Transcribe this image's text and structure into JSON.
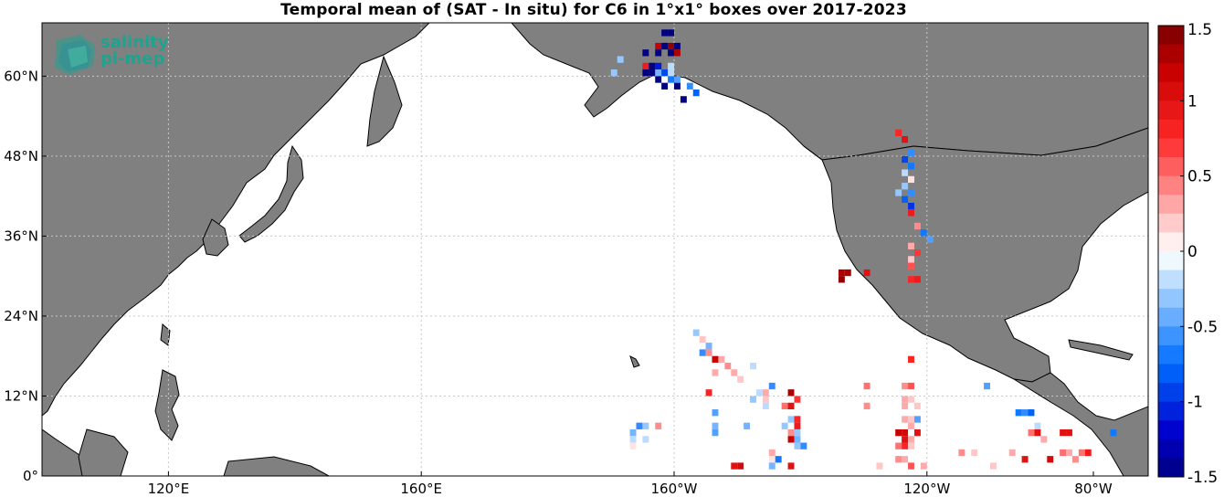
{
  "title": "Temporal mean of (SAT - In situ) for C6 in 1°x1° boxes over 2017-2023",
  "logo": {
    "line1": "salinity",
    "line2": "pi-mep"
  },
  "colors": {
    "land": "#808080",
    "ocean": "#ffffff",
    "grid": "#c8c8c8",
    "coast": "#000000"
  },
  "axes": {
    "lon_range": [
      100,
      275
    ],
    "lat_range": [
      0,
      68
    ],
    "lat_ticks": [
      {
        "value": 0,
        "label": "0°"
      },
      {
        "value": 12,
        "label": "12°N"
      },
      {
        "value": 24,
        "label": "24°N"
      },
      {
        "value": 36,
        "label": "36°N"
      },
      {
        "value": 48,
        "label": "48°N"
      },
      {
        "value": 60,
        "label": "60°N"
      }
    ],
    "lon_ticks": [
      {
        "value": 120,
        "label": "120°E"
      },
      {
        "value": 160,
        "label": "160°E"
      },
      {
        "value": 200,
        "label": "160°W"
      },
      {
        "value": 240,
        "label": "120°W"
      },
      {
        "value": 280,
        "label": "80°W"
      }
    ]
  },
  "colorbar": {
    "range": [
      -1.5,
      1.5
    ],
    "ticks": [
      {
        "value": 1.5,
        "label": "1.5"
      },
      {
        "value": 1,
        "label": "1"
      },
      {
        "value": 0.5,
        "label": "0.5"
      },
      {
        "value": 0,
        "label": "0"
      },
      {
        "value": -0.5,
        "label": "-0.5"
      },
      {
        "value": -1,
        "label": "-1"
      },
      {
        "value": -1.5,
        "label": "-1.5"
      }
    ]
  },
  "chart_data": {
    "type": "heatmap",
    "title": "Temporal mean of (SAT - In situ) for C6 in 1°x1° boxes over 2017-2023",
    "xlabel": "",
    "ylabel": "",
    "grid": true,
    "cells": [
      {
        "lon": 198,
        "lat": 66,
        "v": -1.5
      },
      {
        "lon": 199,
        "lat": 66,
        "v": -1.5
      },
      {
        "lon": 197,
        "lat": 64,
        "v": 1.2
      },
      {
        "lon": 198,
        "lat": 64,
        "v": -1.5
      },
      {
        "lon": 199,
        "lat": 64,
        "v": 1.4
      },
      {
        "lon": 200,
        "lat": 64,
        "v": -1.5
      },
      {
        "lon": 195,
        "lat": 63,
        "v": -1.5
      },
      {
        "lon": 197,
        "lat": 63,
        "v": -1.5
      },
      {
        "lon": 199,
        "lat": 63,
        "v": -1.5
      },
      {
        "lon": 200,
        "lat": 63,
        "v": 1.3
      },
      {
        "lon": 191,
        "lat": 62,
        "v": -0.3
      },
      {
        "lon": 195,
        "lat": 61,
        "v": 0.9
      },
      {
        "lon": 196,
        "lat": 61,
        "v": -1.5
      },
      {
        "lon": 197,
        "lat": 61,
        "v": -1.1
      },
      {
        "lon": 199,
        "lat": 61,
        "v": -0.2
      },
      {
        "lon": 190,
        "lat": 60,
        "v": -0.3
      },
      {
        "lon": 195,
        "lat": 60,
        "v": -1.5
      },
      {
        "lon": 196,
        "lat": 60,
        "v": -1.5
      },
      {
        "lon": 197,
        "lat": 60,
        "v": -0.4
      },
      {
        "lon": 198,
        "lat": 60,
        "v": -0.9
      },
      {
        "lon": 199,
        "lat": 60,
        "v": -0.2
      },
      {
        "lon": 197,
        "lat": 59,
        "v": -1.5
      },
      {
        "lon": 199,
        "lat": 59,
        "v": -0.7
      },
      {
        "lon": 200,
        "lat": 59,
        "v": -0.5
      },
      {
        "lon": 198,
        "lat": 58,
        "v": -1.5
      },
      {
        "lon": 200,
        "lat": 58,
        "v": -1.5
      },
      {
        "lon": 202,
        "lat": 58,
        "v": -0.6
      },
      {
        "lon": 203,
        "lat": 57,
        "v": -0.8
      },
      {
        "lon": 201,
        "lat": 56,
        "v": -1.5
      },
      {
        "lon": 235,
        "lat": 51,
        "v": 0.8
      },
      {
        "lon": 236,
        "lat": 50,
        "v": 1.0
      },
      {
        "lon": 237,
        "lat": 48,
        "v": -0.6
      },
      {
        "lon": 236,
        "lat": 47,
        "v": -0.9
      },
      {
        "lon": 237,
        "lat": 46,
        "v": -0.7
      },
      {
        "lon": 236,
        "lat": 45,
        "v": -0.2
      },
      {
        "lon": 237,
        "lat": 44,
        "v": 0.1
      },
      {
        "lon": 236,
        "lat": 43,
        "v": -0.3
      },
      {
        "lon": 235,
        "lat": 42,
        "v": -0.3
      },
      {
        "lon": 237,
        "lat": 42,
        "v": -0.6
      },
      {
        "lon": 236,
        "lat": 41,
        "v": -0.8
      },
      {
        "lon": 237,
        "lat": 40,
        "v": -1.0
      },
      {
        "lon": 237,
        "lat": 39,
        "v": 0.9
      },
      {
        "lon": 238,
        "lat": 37,
        "v": 0.4
      },
      {
        "lon": 239,
        "lat": 36,
        "v": -0.7
      },
      {
        "lon": 240,
        "lat": 35,
        "v": -0.5
      },
      {
        "lon": 237,
        "lat": 34,
        "v": 0.3
      },
      {
        "lon": 238,
        "lat": 33,
        "v": 0.7
      },
      {
        "lon": 237,
        "lat": 32,
        "v": 0.2
      },
      {
        "lon": 237,
        "lat": 31,
        "v": 0.6
      },
      {
        "lon": 226,
        "lat": 30,
        "v": 1.3
      },
      {
        "lon": 227,
        "lat": 30,
        "v": 1.3
      },
      {
        "lon": 230,
        "lat": 30,
        "v": 1.0
      },
      {
        "lon": 226,
        "lat": 29,
        "v": 1.4
      },
      {
        "lon": 237,
        "lat": 29,
        "v": 0.8
      },
      {
        "lon": 238,
        "lat": 29,
        "v": 0.9
      },
      {
        "lon": 203,
        "lat": 21,
        "v": -0.3
      },
      {
        "lon": 204,
        "lat": 20,
        "v": 0.2
      },
      {
        "lon": 205,
        "lat": 19,
        "v": -0.4
      },
      {
        "lon": 204,
        "lat": 18,
        "v": -0.6
      },
      {
        "lon": 205,
        "lat": 18,
        "v": 0.4
      },
      {
        "lon": 206,
        "lat": 17,
        "v": 1.2
      },
      {
        "lon": 207,
        "lat": 17,
        "v": 0.3
      },
      {
        "lon": 208,
        "lat": 16,
        "v": 0.4
      },
      {
        "lon": 212,
        "lat": 16,
        "v": -0.2
      },
      {
        "lon": 206,
        "lat": 15,
        "v": 0.3
      },
      {
        "lon": 209,
        "lat": 15,
        "v": 0.3
      },
      {
        "lon": 237,
        "lat": 17,
        "v": 0.8
      },
      {
        "lon": 210,
        "lat": 14,
        "v": 0.2
      },
      {
        "lon": 215,
        "lat": 13,
        "v": -0.6
      },
      {
        "lon": 218,
        "lat": 12,
        "v": 1.3
      },
      {
        "lon": 230,
        "lat": 13,
        "v": 0.5
      },
      {
        "lon": 236,
        "lat": 13,
        "v": 0.4
      },
      {
        "lon": 237,
        "lat": 13,
        "v": 0.6
      },
      {
        "lon": 249,
        "lat": 13,
        "v": -0.5
      },
      {
        "lon": 205,
        "lat": 12,
        "v": 0.8
      },
      {
        "lon": 213,
        "lat": 12,
        "v": -0.2
      },
      {
        "lon": 214,
        "lat": 12,
        "v": 0.3
      },
      {
        "lon": 212,
        "lat": 11,
        "v": -0.3
      },
      {
        "lon": 214,
        "lat": 11,
        "v": 0.2
      },
      {
        "lon": 219,
        "lat": 11,
        "v": 0.7
      },
      {
        "lon": 236,
        "lat": 11,
        "v": 0.3
      },
      {
        "lon": 237,
        "lat": 11,
        "v": 0.2
      },
      {
        "lon": 214,
        "lat": 10,
        "v": -0.2
      },
      {
        "lon": 206,
        "lat": 9,
        "v": -0.5
      },
      {
        "lon": 217,
        "lat": 10,
        "v": 0.5
      },
      {
        "lon": 218,
        "lat": 10,
        "v": 1.0
      },
      {
        "lon": 230,
        "lat": 10,
        "v": 0.4
      },
      {
        "lon": 236,
        "lat": 10,
        "v": 0.3
      },
      {
        "lon": 238,
        "lat": 10,
        "v": 0.2
      },
      {
        "lon": 254,
        "lat": 9,
        "v": -0.7
      },
      {
        "lon": 255,
        "lat": 9,
        "v": -0.6
      },
      {
        "lon": 256,
        "lat": 9,
        "v": -0.8
      },
      {
        "lon": 218,
        "lat": 8,
        "v": -0.3
      },
      {
        "lon": 219,
        "lat": 8,
        "v": 0.8
      },
      {
        "lon": 236,
        "lat": 8,
        "v": 0.3
      },
      {
        "lon": 237,
        "lat": 8,
        "v": 0.2
      },
      {
        "lon": 238,
        "lat": 8,
        "v": -0.5
      },
      {
        "lon": 206,
        "lat": 7,
        "v": -0.4
      },
      {
        "lon": 211,
        "lat": 7,
        "v": -0.4
      },
      {
        "lon": 217,
        "lat": 7,
        "v": -0.3
      },
      {
        "lon": 219,
        "lat": 7,
        "v": 0.9
      },
      {
        "lon": 237,
        "lat": 7,
        "v": 0.3
      },
      {
        "lon": 257,
        "lat": 7,
        "v": -0.2
      },
      {
        "lon": 194,
        "lat": 7,
        "v": -0.6
      },
      {
        "lon": 195,
        "lat": 7,
        "v": -0.3
      },
      {
        "lon": 197,
        "lat": 7,
        "v": 0.4
      },
      {
        "lon": 193,
        "lat": 6,
        "v": -0.4
      },
      {
        "lon": 206,
        "lat": 6,
        "v": -0.5
      },
      {
        "lon": 218,
        "lat": 6,
        "v": 0.4
      },
      {
        "lon": 219,
        "lat": 6,
        "v": -0.3
      },
      {
        "lon": 235,
        "lat": 6,
        "v": 1.2
      },
      {
        "lon": 236,
        "lat": 6,
        "v": 1.1
      },
      {
        "lon": 238,
        "lat": 6,
        "v": 1.0
      },
      {
        "lon": 256,
        "lat": 6,
        "v": 0.5
      },
      {
        "lon": 257,
        "lat": 6,
        "v": 1.0
      },
      {
        "lon": 261,
        "lat": 6,
        "v": 1.0
      },
      {
        "lon": 262,
        "lat": 6,
        "v": 1.0
      },
      {
        "lon": 269,
        "lat": 6,
        "v": -0.7
      },
      {
        "lon": 193,
        "lat": 5,
        "v": -0.2
      },
      {
        "lon": 195,
        "lat": 5,
        "v": -0.2
      },
      {
        "lon": 218,
        "lat": 5,
        "v": 1.2
      },
      {
        "lon": 219,
        "lat": 5,
        "v": -0.4
      },
      {
        "lon": 236,
        "lat": 5,
        "v": 1.0
      },
      {
        "lon": 237,
        "lat": 5,
        "v": 0.3
      },
      {
        "lon": 258,
        "lat": 5,
        "v": 0.3
      },
      {
        "lon": 193,
        "lat": 4,
        "v": 0.1
      },
      {
        "lon": 219,
        "lat": 4,
        "v": -0.3
      },
      {
        "lon": 220,
        "lat": 4,
        "v": -0.6
      },
      {
        "lon": 235,
        "lat": 4,
        "v": 0.5
      },
      {
        "lon": 236,
        "lat": 4,
        "v": 0.8
      },
      {
        "lon": 237,
        "lat": 4,
        "v": 0.2
      },
      {
        "lon": 215,
        "lat": 3,
        "v": 0.3
      },
      {
        "lon": 245,
        "lat": 3,
        "v": 0.4
      },
      {
        "lon": 247,
        "lat": 3,
        "v": 0.2
      },
      {
        "lon": 253,
        "lat": 3,
        "v": 0.3
      },
      {
        "lon": 261,
        "lat": 3,
        "v": 0.5
      },
      {
        "lon": 262,
        "lat": 3,
        "v": 0.3
      },
      {
        "lon": 264,
        "lat": 3,
        "v": 0.5
      },
      {
        "lon": 265,
        "lat": 3,
        "v": 0.9
      },
      {
        "lon": 215,
        "lat": 2,
        "v": 0.1
      },
      {
        "lon": 216,
        "lat": 2,
        "v": -0.7
      },
      {
        "lon": 235,
        "lat": 2,
        "v": 0.4
      },
      {
        "lon": 236,
        "lat": 2,
        "v": 0.3
      },
      {
        "lon": 255,
        "lat": 2,
        "v": 1.0
      },
      {
        "lon": 259,
        "lat": 2,
        "v": 1.1
      },
      {
        "lon": 263,
        "lat": 2,
        "v": 0.4
      },
      {
        "lon": 209,
        "lat": 1,
        "v": 1.0
      },
      {
        "lon": 210,
        "lat": 1,
        "v": 1.1
      },
      {
        "lon": 215,
        "lat": 1,
        "v": -0.4
      },
      {
        "lon": 218,
        "lat": 1,
        "v": 1.0
      },
      {
        "lon": 232,
        "lat": 1,
        "v": 0.2
      },
      {
        "lon": 237,
        "lat": 1,
        "v": 0.6
      },
      {
        "lon": 239,
        "lat": 1,
        "v": 0.3
      },
      {
        "lon": 250,
        "lat": 1,
        "v": 0.2
      }
    ]
  }
}
